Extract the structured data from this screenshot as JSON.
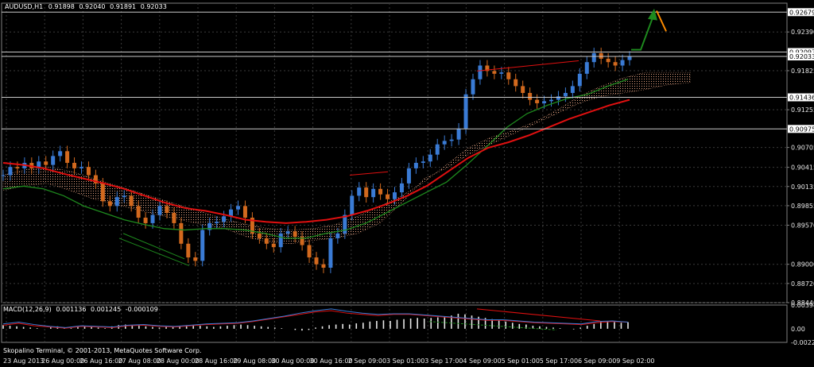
{
  "chart_data": [
    {
      "type": "candlestick",
      "symbol_title": "AUDUSD,H1",
      "ohlc_readout": [
        "0.91898",
        "0.92040",
        "0.91891",
        "0.92033"
      ],
      "x_tick_labels": [
        "23 Aug 2013",
        "26 Aug 00:00",
        "26 Aug 16:00",
        "27 Aug 08:00",
        "28 Aug 00:00",
        "28 Aug 16:00",
        "29 Aug 08:00",
        "30 Aug 00:00",
        "30 Aug 16:00",
        "2 Sep 09:00",
        "3 Sep 01:00",
        "3 Sep 17:00",
        "4 Sep 09:00",
        "5 Sep 01:00",
        "5 Sep 17:00",
        "6 Sep 09:00",
        "9 Sep 02:00"
      ],
      "y_tick_labels": [
        "0.92390",
        "0.91825",
        "0.91255",
        "0.90705",
        "0.90415",
        "0.90135",
        "0.89855",
        "0.89570",
        "0.89000",
        "0.88720",
        "0.88440"
      ],
      "ylim": [
        0.8844,
        0.9281
      ],
      "horizontal_levels": [
        {
          "price": 0.92679,
          "label": "0.92679"
        },
        {
          "price": 0.92097,
          "label": "0.92097"
        },
        {
          "price": 0.92033,
          "label": "0.92033"
        },
        {
          "price": 0.91436,
          "label": "0.91436"
        },
        {
          "price": 0.90975,
          "label": "0.90975"
        }
      ],
      "colors": {
        "bull": "#3a7bd5",
        "bear": "#d2691e",
        "ma_fast": "#1e8a1e",
        "ma_slow": "#e01010",
        "cloud": "#e0a080",
        "level": "#c8c8c8",
        "arrow_up": "#1e8a1e",
        "arrow_down": "#ff8c00",
        "price_tag": "#ffffff"
      },
      "close_path": [
        0.903,
        0.9042,
        0.904,
        0.9048,
        0.904,
        0.905,
        0.9045,
        0.9058,
        0.9065,
        0.9048,
        0.904,
        0.9042,
        0.903,
        0.9018,
        0.8992,
        0.8985,
        0.8998,
        0.9,
        0.8985,
        0.8968,
        0.896,
        0.8972,
        0.8985,
        0.8975,
        0.896,
        0.893,
        0.891,
        0.8905,
        0.895,
        0.896,
        0.8962,
        0.897,
        0.898,
        0.8985,
        0.8968,
        0.8945,
        0.8938,
        0.893,
        0.8925,
        0.8945,
        0.8948,
        0.894,
        0.8928,
        0.891,
        0.89,
        0.8895,
        0.8938,
        0.8945,
        0.8972,
        0.9,
        0.9012,
        0.8998,
        0.901,
        0.9002,
        0.8995,
        0.9005,
        0.9018,
        0.904,
        0.9048,
        0.905,
        0.906,
        0.9075,
        0.908,
        0.9082,
        0.9098,
        0.9148,
        0.917,
        0.919,
        0.9182,
        0.9178,
        0.918,
        0.917,
        0.916,
        0.915,
        0.914,
        0.9135,
        0.9138,
        0.914,
        0.9145,
        0.915,
        0.916,
        0.9178,
        0.9195,
        0.9208,
        0.92,
        0.9195,
        0.919,
        0.9198,
        0.9203
      ],
      "ma_fast_path": [
        0.901,
        0.9014,
        0.901,
        0.9,
        0.8985,
        0.8975,
        0.8965,
        0.8958,
        0.8952,
        0.895,
        0.8952,
        0.8952,
        0.895,
        0.8945,
        0.8938,
        0.8938,
        0.8945,
        0.895,
        0.896,
        0.8975,
        0.899,
        0.9005,
        0.902,
        0.9045,
        0.9072,
        0.91,
        0.912,
        0.9132,
        0.9142,
        0.9148,
        0.916,
        0.917
      ],
      "ma_slow_path": [
        0.9048,
        0.9045,
        0.904,
        0.9032,
        0.9025,
        0.9018,
        0.901,
        0.9,
        0.899,
        0.8982,
        0.8978,
        0.8972,
        0.8965,
        0.8962,
        0.896,
        0.8962,
        0.8965,
        0.897,
        0.8978,
        0.8988,
        0.9,
        0.9015,
        0.9035,
        0.9055,
        0.907,
        0.9078,
        0.9088,
        0.91,
        0.9112,
        0.9122,
        0.9132,
        0.914
      ],
      "cloud_top": [
        0.903,
        0.9038,
        0.9042,
        0.9036,
        0.9026,
        0.9016,
        0.9006,
        0.8996,
        0.8986,
        0.8976,
        0.8966,
        0.8958,
        0.8952,
        0.895,
        0.8952,
        0.8958,
        0.897,
        0.8985,
        0.9,
        0.902,
        0.9045,
        0.907,
        0.9085,
        0.9095,
        0.9108,
        0.9125,
        0.9145,
        0.916,
        0.9172,
        0.918,
        0.918,
        0.918
      ],
      "cloud_bottom": [
        0.9008,
        0.9015,
        0.9018,
        0.9008,
        0.8996,
        0.8988,
        0.898,
        0.8972,
        0.8965,
        0.8958,
        0.8952,
        0.894,
        0.8932,
        0.893,
        0.8935,
        0.8938,
        0.8945,
        0.896,
        0.899,
        0.9025,
        0.904,
        0.906,
        0.9075,
        0.909,
        0.9105,
        0.912,
        0.9135,
        0.9145,
        0.915,
        0.9155,
        0.9162,
        0.9165
      ]
    },
    {
      "type": "bar",
      "indicator_title": "MACD(12,26,9)",
      "readout": [
        "0.001136",
        "0.001245",
        "-0.000109"
      ],
      "y_tick_labels": [
        "0.003947",
        "0.00",
        "-0.002266"
      ],
      "ylim": [
        -0.002266,
        0.003947
      ],
      "histogram": [
        0.0006,
        0.0005,
        0.0004,
        0.0003,
        0.0002,
        0.0001,
        0.0,
        0.0003,
        0.0004,
        0.0002,
        0.0001,
        0.0003,
        0.0004,
        0.0003,
        0.0002,
        0.0001,
        0.0004,
        0.0006,
        0.0007,
        0.0006,
        0.0005,
        0.0004,
        0.0003,
        0.0002,
        0.0003,
        0.0004,
        0.0005,
        0.0006,
        0.0006,
        0.0005,
        0.0004,
        0.0003,
        0.0004,
        0.0005,
        0.0006,
        0.0007,
        0.0006,
        0.0005,
        0.0004,
        0.0003,
        0.0002,
        0.0001,
        0.0,
        -0.0002,
        -0.0003,
        -0.0002,
        0.0002,
        0.0004,
        0.0006,
        0.0007,
        0.0008,
        0.0007,
        0.0009,
        0.001,
        0.0012,
        0.0013,
        0.0014,
        0.0013,
        0.0015,
        0.0016,
        0.0017,
        0.0018,
        0.0017,
        0.0018,
        0.0019,
        0.002,
        0.0022,
        0.0025,
        0.0024,
        0.0022,
        0.002,
        0.0018,
        0.0016,
        0.0014,
        0.0012,
        0.001,
        0.0008,
        0.0007,
        0.0005,
        0.0004,
        0.0003,
        0.0002,
        0.0001,
        0.0,
        -0.0001,
        0.0002,
        0.0005,
        0.0008,
        0.0012,
        0.0013,
        0.0011,
        0.001,
        0.0011
      ],
      "signal_path": [
        0.0006,
        0.0009,
        0.0005,
        0.0003,
        0.0001,
        0.0004,
        0.0003,
        0.0002,
        0.0005,
        0.0006,
        0.0004,
        0.0003,
        0.0005,
        0.0007,
        0.0008,
        0.0009,
        0.0012,
        0.0016,
        0.002,
        0.0024,
        0.0028,
        0.003,
        0.0026,
        0.0024,
        0.0022,
        0.0024,
        0.0024,
        0.0022,
        0.002,
        0.0018,
        0.0016,
        0.0014,
        0.0014,
        0.0012,
        0.001,
        0.0009,
        0.0008,
        0.0007,
        0.001,
        0.0012,
        0.0011
      ],
      "main_path": [
        0.0008,
        0.0011,
        0.0007,
        0.0004,
        0.0002,
        0.0005,
        0.0004,
        0.0003,
        0.0006,
        0.0007,
        0.0005,
        0.0004,
        0.0006,
        0.0008,
        0.0009,
        0.001,
        0.0013,
        0.0017,
        0.0021,
        0.0026,
        0.003,
        0.0033,
        0.0029,
        0.0026,
        0.0024,
        0.0025,
        0.0025,
        0.0023,
        0.0021,
        0.0019,
        0.0017,
        0.0015,
        0.0015,
        0.0013,
        0.0011,
        0.001,
        0.0009,
        0.0008,
        0.0012,
        0.0013,
        0.0011
      ],
      "colors": {
        "histogram": "#e8e8e8",
        "signal": "#e01010",
        "main": "#3a7bd5",
        "divergence": "#e01010",
        "divergence_bull": "#1e8a1e"
      }
    }
  ],
  "footer_text": "Skopalino Terminal, © 2001-2013, MetaQuotes Software Corp."
}
